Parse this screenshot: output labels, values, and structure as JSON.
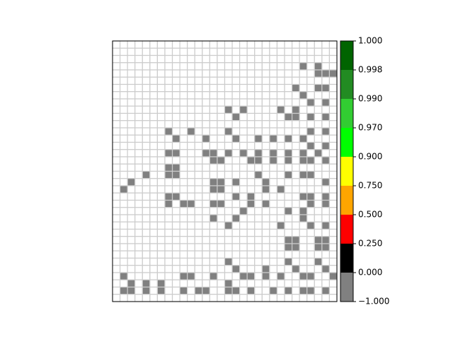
{
  "chart_data": {
    "type": "heatmap",
    "title": "",
    "xlabel": "",
    "ylabel": "",
    "grid": true,
    "n_rows": 36,
    "n_cols": 30,
    "cell_value_empty": 0.0,
    "cell_value_filled": -0.5,
    "filled_cells": [
      [
        3,
        25
      ],
      [
        3,
        27
      ],
      [
        4,
        27
      ],
      [
        4,
        28
      ],
      [
        4,
        29
      ],
      [
        6,
        24
      ],
      [
        6,
        27
      ],
      [
        6,
        28
      ],
      [
        7,
        25
      ],
      [
        8,
        26
      ],
      [
        8,
        28
      ],
      [
        9,
        15
      ],
      [
        9,
        17
      ],
      [
        9,
        22
      ],
      [
        9,
        24
      ],
      [
        10,
        16
      ],
      [
        10,
        23
      ],
      [
        10,
        24
      ],
      [
        10,
        26
      ],
      [
        10,
        28
      ],
      [
        12,
        7
      ],
      [
        12,
        10
      ],
      [
        12,
        15
      ],
      [
        12,
        26
      ],
      [
        12,
        28
      ],
      [
        13,
        8
      ],
      [
        13,
        12
      ],
      [
        13,
        16
      ],
      [
        13,
        19
      ],
      [
        13,
        21
      ],
      [
        13,
        23
      ],
      [
        13,
        25
      ],
      [
        14,
        26
      ],
      [
        14,
        28
      ],
      [
        15,
        7
      ],
      [
        15,
        8
      ],
      [
        15,
        12
      ],
      [
        15,
        13
      ],
      [
        15,
        15
      ],
      [
        15,
        17
      ],
      [
        15,
        19
      ],
      [
        15,
        21
      ],
      [
        15,
        23
      ],
      [
        15,
        25
      ],
      [
        15,
        27
      ],
      [
        16,
        13
      ],
      [
        16,
        14
      ],
      [
        16,
        18
      ],
      [
        16,
        19
      ],
      [
        16,
        21
      ],
      [
        16,
        23
      ],
      [
        16,
        25
      ],
      [
        16,
        26
      ],
      [
        16,
        28
      ],
      [
        17,
        7
      ],
      [
        17,
        8
      ],
      [
        18,
        4
      ],
      [
        18,
        7
      ],
      [
        18,
        8
      ],
      [
        18,
        19
      ],
      [
        18,
        23
      ],
      [
        18,
        25
      ],
      [
        18,
        26
      ],
      [
        19,
        2
      ],
      [
        19,
        13
      ],
      [
        19,
        14
      ],
      [
        19,
        16
      ],
      [
        19,
        20
      ],
      [
        19,
        28
      ],
      [
        20,
        1
      ],
      [
        20,
        13
      ],
      [
        20,
        14
      ],
      [
        20,
        20
      ],
      [
        20,
        22
      ],
      [
        21,
        7
      ],
      [
        21,
        8
      ],
      [
        21,
        16
      ],
      [
        21,
        18
      ],
      [
        21,
        25
      ],
      [
        21,
        26
      ],
      [
        21,
        28
      ],
      [
        22,
        7
      ],
      [
        22,
        9
      ],
      [
        22,
        10
      ],
      [
        22,
        13
      ],
      [
        22,
        14
      ],
      [
        22,
        18
      ],
      [
        22,
        20
      ],
      [
        22,
        26
      ],
      [
        22,
        28
      ],
      [
        23,
        17
      ],
      [
        23,
        23
      ],
      [
        23,
        25
      ],
      [
        24,
        13
      ],
      [
        24,
        16
      ],
      [
        24,
        25
      ],
      [
        25,
        15
      ],
      [
        25,
        22
      ],
      [
        25,
        26
      ],
      [
        25,
        28
      ],
      [
        27,
        23
      ],
      [
        27,
        24
      ],
      [
        27,
        27
      ],
      [
        27,
        28
      ],
      [
        28,
        23
      ],
      [
        28,
        24
      ],
      [
        28,
        27
      ],
      [
        28,
        28
      ],
      [
        30,
        15
      ],
      [
        30,
        23
      ],
      [
        30,
        27
      ],
      [
        31,
        16
      ],
      [
        31,
        20
      ],
      [
        31,
        24
      ],
      [
        31,
        28
      ],
      [
        32,
        1
      ],
      [
        32,
        9
      ],
      [
        32,
        10
      ],
      [
        32,
        13
      ],
      [
        32,
        17
      ],
      [
        32,
        18
      ],
      [
        32,
        20
      ],
      [
        32,
        22
      ],
      [
        32,
        25
      ],
      [
        32,
        26
      ],
      [
        32,
        29
      ],
      [
        33,
        2
      ],
      [
        33,
        4
      ],
      [
        33,
        6
      ],
      [
        33,
        15
      ],
      [
        34,
        1
      ],
      [
        34,
        2
      ],
      [
        34,
        4
      ],
      [
        34,
        6
      ],
      [
        34,
        9
      ],
      [
        34,
        11
      ],
      [
        34,
        12
      ],
      [
        34,
        15
      ],
      [
        34,
        16
      ],
      [
        34,
        18
      ],
      [
        34,
        21
      ],
      [
        34,
        23
      ],
      [
        34,
        25
      ],
      [
        34,
        26
      ],
      [
        34,
        28
      ]
    ],
    "colorbar": {
      "boundaries": [
        -1.0,
        0.0,
        0.25,
        0.5,
        0.75,
        0.9,
        0.97,
        0.99,
        0.998,
        1.0
      ],
      "colors": [
        "#808080",
        "#000000",
        "#ff0000",
        "#ffa500",
        "#ffff00",
        "#00ff00",
        "#32cd32",
        "#228b22",
        "#006400"
      ],
      "tick_labels": [
        "−1.000",
        "0.000",
        "0.250",
        "0.500",
        "0.750",
        "0.900",
        "0.970",
        "0.990",
        "0.998",
        "1.000"
      ]
    }
  }
}
